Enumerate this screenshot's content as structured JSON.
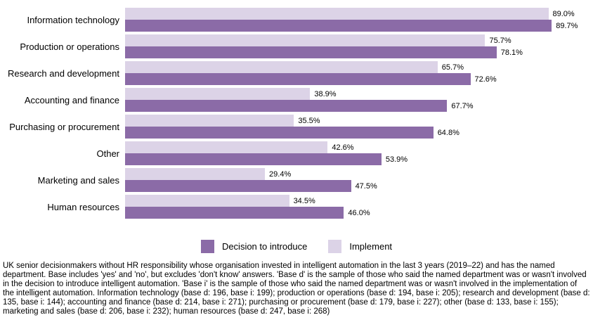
{
  "chart_data": {
    "type": "bar",
    "orientation": "horizontal",
    "title": "",
    "xlabel": "",
    "ylabel": "",
    "xlim": [
      0,
      100
    ],
    "grid": false,
    "legend_position": "bottom-center",
    "value_suffix": "%",
    "group_bar_order_top_to_bottom": [
      "Implement",
      "Decision to introduce"
    ],
    "categories": [
      "Information technology",
      "Production or operations",
      "Research and development",
      "Accounting and finance",
      "Purchasing or procurement",
      "Other",
      "Marketing and sales",
      "Human resources"
    ],
    "series": [
      {
        "name": "Decision to introduce",
        "color": "#8b6ba7",
        "values": [
          89.7,
          78.1,
          72.6,
          67.7,
          64.8,
          53.9,
          47.5,
          46.0
        ]
      },
      {
        "name": "Implement",
        "color": "#dcd3e7",
        "values": [
          89.0,
          75.7,
          65.7,
          38.9,
          35.5,
          42.6,
          29.4,
          34.5
        ]
      }
    ]
  },
  "footnote": "UK senior decisionmakers without HR responsibility whose organisation invested in intelligent automation in the last 3 years (2019–22) and has the named department. Base includes 'yes' and 'no', but excludes 'don't know' answers. 'Base d' is the sample of those who said the named department was or wasn't involved in the decision to introduce intelligent automation. 'Base i' is the sample of those who said the named department was or wasn't involved in the implementation of the intelligent automation. Information technology (base d: 196, base i: 199); production or operations (base d: 194, base i: 205); research and development (base d: 135, base i: 144); accounting and finance (base d: 214, base i: 271); purchasing or procurement (base d: 179, base i: 227); other (base d: 133, base i: 155); marketing and sales (base d: 206, base i: 232); human resources (base d: 247, base i: 268)"
}
